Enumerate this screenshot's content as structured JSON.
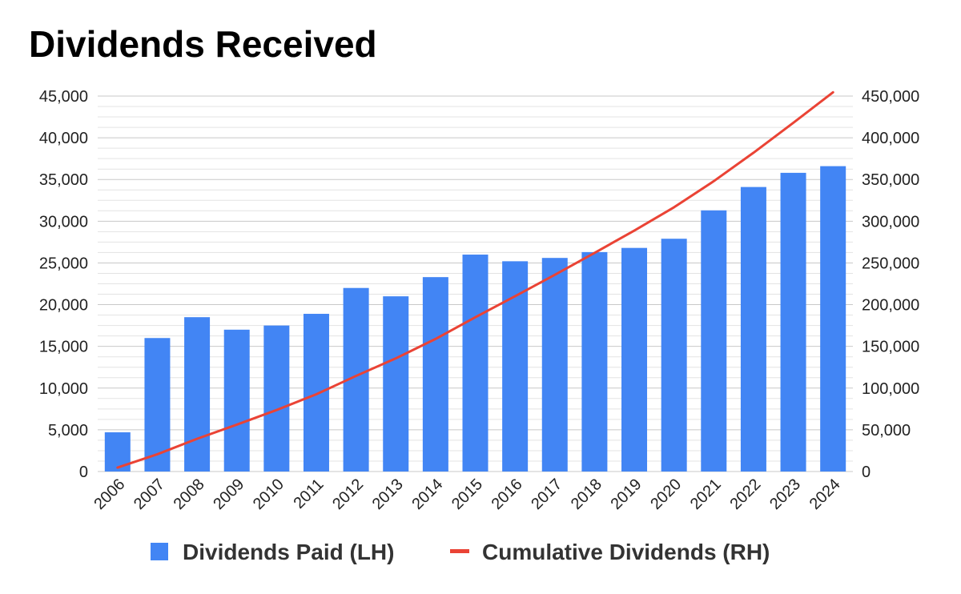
{
  "chart_data": {
    "type": "bar+line",
    "title": "Dividends Received",
    "categories": [
      "2006",
      "2007",
      "2008",
      "2009",
      "2010",
      "2011",
      "2012",
      "2013",
      "2014",
      "2015",
      "2016",
      "2017",
      "2018",
      "2019",
      "2020",
      "2021",
      "2022",
      "2023",
      "2024"
    ],
    "series": [
      {
        "name": "Dividends Paid (LH)",
        "type": "bar",
        "axis": "left",
        "color": "#4285f4",
        "values": [
          4700,
          16000,
          18500,
          17000,
          17500,
          18900,
          22000,
          21000,
          23300,
          26000,
          25200,
          25600,
          26300,
          26800,
          27900,
          31300,
          34100,
          35800,
          36600
        ]
      },
      {
        "name": "Cumulative Dividends (RH)",
        "type": "line",
        "axis": "right",
        "color": "#ea4335",
        "values": [
          4700,
          20700,
          39200,
          56200,
          73700,
          92600,
          114600,
          135600,
          158900,
          184900,
          210100,
          235700,
          262000,
          288800,
          316700,
          348000,
          382100,
          417900,
          454500
        ]
      }
    ],
    "left_axis": {
      "min": 0,
      "max": 45000,
      "ticks": [
        "0",
        "5,000",
        "10,000",
        "15,000",
        "20,000",
        "25,000",
        "30,000",
        "35,000",
        "40,000",
        "45,000"
      ]
    },
    "right_axis": {
      "min": 0,
      "max": 450000,
      "ticks": [
        "0",
        "50,000",
        "100,000",
        "150,000",
        "200,000",
        "250,000",
        "300,000",
        "350,000",
        "400,000",
        "450,000"
      ]
    },
    "minor_gridlines_per_major": 4,
    "legend_position": "bottom"
  }
}
